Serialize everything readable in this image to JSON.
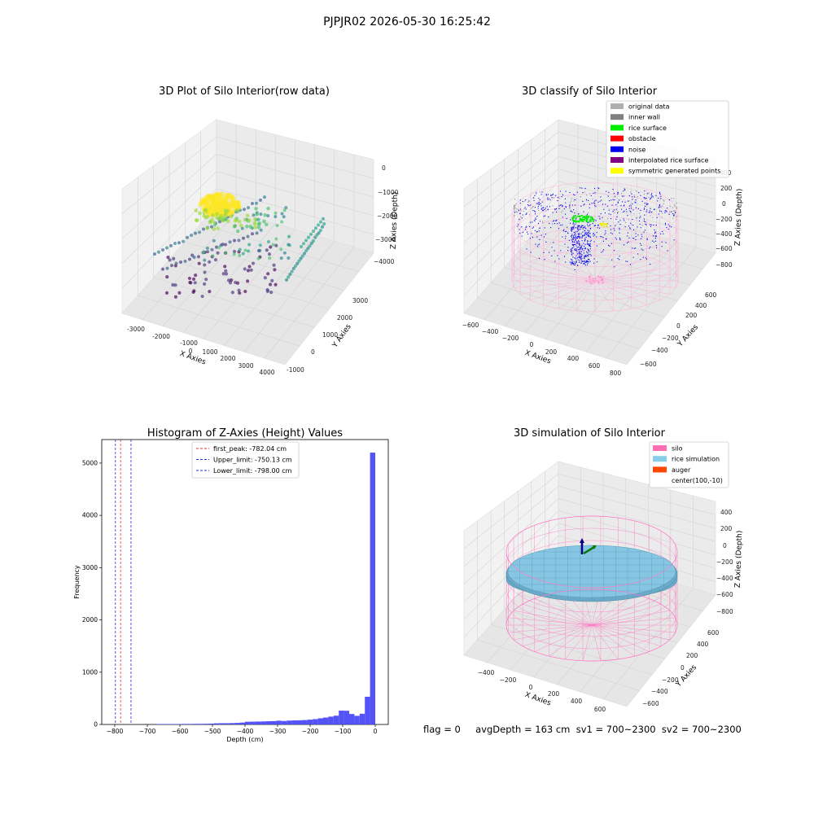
{
  "figure": {
    "title": "PJPJR02 2026-05-30 16:25:42",
    "status_text": "flag = 0     avgDepth = 163 cm  sv1 = 700~2300  sv2 = 700~2300"
  },
  "colors": {
    "hist_bar": "#4b4bf5",
    "first_peak_line": "#e03030",
    "limit_line": "#2a2ad8",
    "silo_mesh": "#ff77c2",
    "rice_sim": "#87c6e3",
    "auger": "#ff4500"
  },
  "chart_data": [
    {
      "type": "scatter",
      "title": "3D Plot of Silo Interior(row data)",
      "xlabel": "X Axies",
      "ylabel": "Y Axies",
      "zlabel": "Z Axies (Depth)",
      "x_ticks": [
        "-3000",
        "-2000",
        "-1000",
        "0",
        "1000",
        "2000",
        "3000",
        "4000"
      ],
      "y_ticks": [
        "-1000",
        "0",
        "1000",
        "2000",
        "3000"
      ],
      "z_ticks": [
        "0",
        "−1000",
        "−2000",
        "−3000",
        "−4000"
      ],
      "xlim": [
        -3300,
        4300
      ],
      "ylim": [
        -1200,
        3800
      ],
      "zlim": [
        -4800,
        200
      ],
      "colormap": "viridis"
    },
    {
      "type": "scatter",
      "title": "3D classify of Silo Interior",
      "xlabel": "X Axies",
      "ylabel": "Y Axies",
      "zlabel": "Z Axies (Depth)",
      "x_ticks": [
        "−600",
        "−400",
        "−200",
        "0",
        "200",
        "400",
        "600",
        "800"
      ],
      "y_ticks": [
        "−600",
        "−400",
        "−200",
        "0",
        "200",
        "400",
        "600"
      ],
      "z_ticks": [
        "400",
        "200",
        "0",
        "−200",
        "−400",
        "−600",
        "−800"
      ],
      "legend": [
        {
          "label": "original data",
          "color": "#b0b0b0"
        },
        {
          "label": "inner wall",
          "color": "#808080"
        },
        {
          "label": "rice surface",
          "color": "#00ee00"
        },
        {
          "label": "obstacle",
          "color": "#ff0000"
        },
        {
          "label": "noise",
          "color": "#0000ee"
        },
        {
          "label": "interpolated rice surface",
          "color": "#800080"
        },
        {
          "label": "symmetric generated points",
          "color": "#ffff00"
        }
      ],
      "legend_placement": "top-right"
    },
    {
      "type": "bar",
      "title": "Histogram of Z-Axies (Height) Values",
      "xlabel": "Depth (cm)",
      "ylabel": "Frequency",
      "xlim": [
        -840,
        40
      ],
      "ylim": [
        0,
        5450
      ],
      "x_ticks": [
        -800,
        -700,
        -600,
        -500,
        -400,
        -300,
        -200,
        -100,
        0
      ],
      "y_ticks": [
        0,
        1000,
        2000,
        3000,
        4000,
        5000
      ],
      "bin_width": 16,
      "bins": [
        {
          "x0": -672,
          "count": 8
        },
        {
          "x0": -656,
          "count": 8
        },
        {
          "x0": -640,
          "count": 8
        },
        {
          "x0": -624,
          "count": 8
        },
        {
          "x0": -608,
          "count": 8
        },
        {
          "x0": -592,
          "count": 10
        },
        {
          "x0": -576,
          "count": 10
        },
        {
          "x0": -560,
          "count": 12
        },
        {
          "x0": -544,
          "count": 12
        },
        {
          "x0": -528,
          "count": 14
        },
        {
          "x0": -512,
          "count": 16
        },
        {
          "x0": -496,
          "count": 22
        },
        {
          "x0": -480,
          "count": 24
        },
        {
          "x0": -464,
          "count": 24
        },
        {
          "x0": -448,
          "count": 26
        },
        {
          "x0": -432,
          "count": 30
        },
        {
          "x0": -416,
          "count": 36
        },
        {
          "x0": -400,
          "count": 52
        },
        {
          "x0": -384,
          "count": 54
        },
        {
          "x0": -368,
          "count": 56
        },
        {
          "x0": -352,
          "count": 58
        },
        {
          "x0": -336,
          "count": 62
        },
        {
          "x0": -320,
          "count": 64
        },
        {
          "x0": -304,
          "count": 72
        },
        {
          "x0": -288,
          "count": 66
        },
        {
          "x0": -272,
          "count": 74
        },
        {
          "x0": -256,
          "count": 78
        },
        {
          "x0": -240,
          "count": 80
        },
        {
          "x0": -224,
          "count": 84
        },
        {
          "x0": -208,
          "count": 92
        },
        {
          "x0": -192,
          "count": 102
        },
        {
          "x0": -176,
          "count": 118
        },
        {
          "x0": -160,
          "count": 132
        },
        {
          "x0": -144,
          "count": 150
        },
        {
          "x0": -128,
          "count": 168
        },
        {
          "x0": -112,
          "count": 265
        },
        {
          "x0": -96,
          "count": 262
        },
        {
          "x0": -80,
          "count": 200
        },
        {
          "x0": -64,
          "count": 165
        },
        {
          "x0": -48,
          "count": 205
        },
        {
          "x0": -32,
          "count": 530
        },
        {
          "x0": -16,
          "count": 5200
        }
      ],
      "vlines": [
        {
          "label": "first_peak: -782.04 cm",
          "x": -782.04,
          "color": "#e03030"
        },
        {
          "label": "Upper_limit: -750.13 cm",
          "x": -750.13,
          "color": "#2a2ad8"
        },
        {
          "label": "Lower_limit: -798.00 cm",
          "x": -798.0,
          "color": "#2a2ad8"
        }
      ],
      "legend_placement": "upper-center"
    },
    {
      "type": "scatter",
      "title": "3D simulation of Silo Interior",
      "xlabel": "X Axies",
      "ylabel": "Y Axies",
      "zlabel": "Z Axies (Depth)",
      "x_ticks": [
        "−400",
        "−200",
        "0",
        "200",
        "400",
        "600"
      ],
      "y_ticks": [
        "−600",
        "−400",
        "−200",
        "0",
        "200",
        "400",
        "600"
      ],
      "z_ticks": [
        "400",
        "200",
        "0",
        "−200",
        "−400",
        "−600",
        "−800"
      ],
      "legend": [
        {
          "label": "silo",
          "color": "#ff6eb4"
        },
        {
          "label": "rice simulation",
          "color": "#87ceeb"
        },
        {
          "label": "auger",
          "color": "#ff4500"
        },
        {
          "label": "center(100,-10)",
          "color": ""
        }
      ],
      "legend_placement": "top-right"
    }
  ]
}
